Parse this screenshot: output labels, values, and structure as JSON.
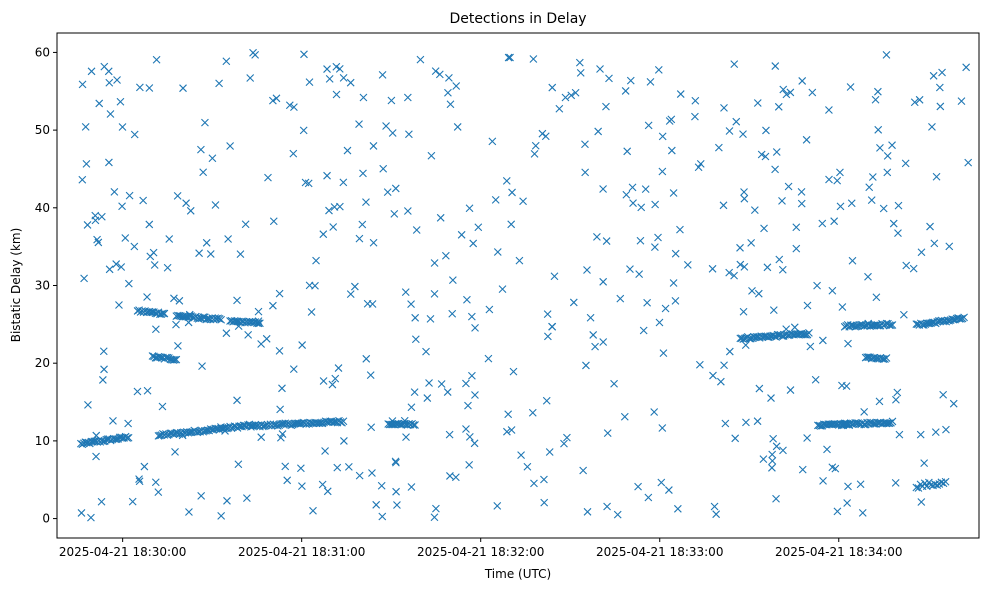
{
  "chart_data": {
    "type": "scatter",
    "title": "Detections in Delay",
    "xlabel": "Time (UTC)",
    "ylabel": "Bistatic Delay (km)",
    "marker": "x",
    "color": "#1f77b4",
    "grid": false,
    "xlim": [
      "2025-04-21 18:29:38",
      "2025-04-21 18:34:47"
    ],
    "ylim": [
      -2.5,
      62.5
    ],
    "x_ticks": [
      "2025-04-21 18:30:00",
      "2025-04-21 18:31:00",
      "2025-04-21 18:32:00",
      "2025-04-21 18:33:00",
      "2025-04-21 18:34:00"
    ],
    "y_ticks": [
      0,
      10,
      20,
      30,
      40,
      50,
      60
    ],
    "tracks": [
      {
        "from": [
          "2025-04-21 18:29:46",
          9.6
        ],
        "to": [
          "2025-04-21 18:30:02",
          10.5
        ],
        "step_seconds": 0.5,
        "jitter_km": 0.15
      },
      {
        "from": [
          "2025-04-21 18:30:12",
          10.7
        ],
        "to": [
          "2025-04-21 18:30:43",
          12.0
        ],
        "step_seconds": 0.5,
        "jitter_km": 0.15
      },
      {
        "from": [
          "2025-04-21 18:30:43",
          11.9
        ],
        "to": [
          "2025-04-21 18:31:14",
          12.5
        ],
        "step_seconds": 0.5,
        "jitter_km": 0.15
      },
      {
        "from": [
          "2025-04-21 18:31:29",
          12.2
        ],
        "to": [
          "2025-04-21 18:31:38",
          12.1
        ],
        "step_seconds": 0.5,
        "jitter_km": 0.1
      },
      {
        "from": [
          "2025-04-21 18:30:05",
          26.7
        ],
        "to": [
          "2025-04-21 18:30:14",
          26.4
        ],
        "step_seconds": 0.5,
        "jitter_km": 0.15
      },
      {
        "from": [
          "2025-04-21 18:30:18",
          26.1
        ],
        "to": [
          "2025-04-21 18:30:33",
          25.6
        ],
        "step_seconds": 0.5,
        "jitter_km": 0.15
      },
      {
        "from": [
          "2025-04-21 18:30:36",
          25.4
        ],
        "to": [
          "2025-04-21 18:30:46",
          25.2
        ],
        "step_seconds": 0.5,
        "jitter_km": 0.1
      },
      {
        "from": [
          "2025-04-21 18:30:10",
          20.8
        ],
        "to": [
          "2025-04-21 18:30:18",
          20.5
        ],
        "step_seconds": 0.5,
        "jitter_km": 0.15
      },
      {
        "from": [
          "2025-04-21 18:33:27",
          23.2
        ],
        "to": [
          "2025-04-21 18:33:50",
          23.8
        ],
        "step_seconds": 0.5,
        "jitter_km": 0.15
      },
      {
        "from": [
          "2025-04-21 18:33:53",
          12.0
        ],
        "to": [
          "2025-04-21 18:34:04",
          12.2
        ],
        "step_seconds": 0.5,
        "jitter_km": 0.1
      },
      {
        "from": [
          "2025-04-21 18:34:01",
          12.1
        ],
        "to": [
          "2025-04-21 18:34:18",
          12.4
        ],
        "step_seconds": 0.5,
        "jitter_km": 0.15
      },
      {
        "from": [
          "2025-04-21 18:34:02",
          24.8
        ],
        "to": [
          "2025-04-21 18:34:18",
          25.0
        ],
        "step_seconds": 0.5,
        "jitter_km": 0.15
      },
      {
        "from": [
          "2025-04-21 18:34:26",
          24.9
        ],
        "to": [
          "2025-04-21 18:34:42",
          25.8
        ],
        "step_seconds": 0.5,
        "jitter_km": 0.15
      },
      {
        "from": [
          "2025-04-21 18:34:09",
          20.7
        ],
        "to": [
          "2025-04-21 18:34:16",
          20.6
        ],
        "step_seconds": 0.5,
        "jitter_km": 0.1
      },
      {
        "from": [
          "2025-04-21 18:34:26",
          4.2
        ],
        "to": [
          "2025-04-21 18:34:36",
          4.6
        ],
        "step_seconds": 0.7,
        "jitter_km": 0.3
      }
    ],
    "scatter_points": {
      "count": 520,
      "y_range": [
        0,
        60
      ],
      "time_range": [
        "2025-04-21 18:29:46",
        "2025-04-21 18:34:44"
      ]
    }
  }
}
